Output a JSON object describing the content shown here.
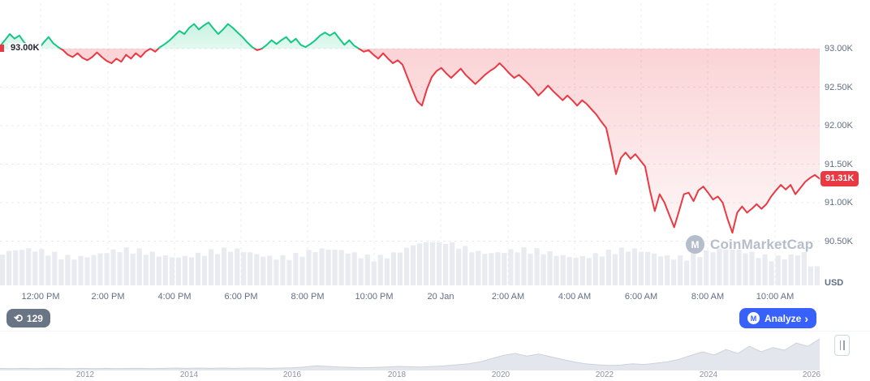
{
  "chart": {
    "left_price_label": "93.00K",
    "current_price_badge": "91.31K",
    "y_axis_unit": "USD",
    "watermark": "CoinMarketCap",
    "colors": {
      "up": "#16c784",
      "down": "#ea3943",
      "accent_blue": "#3861fb",
      "grid": "#e8ecf1",
      "axis_text": "#616e85",
      "volume_bar": "#e9ebf1",
      "badge": "#ea3943"
    }
  },
  "toolbar": {
    "history_count": "129",
    "analyze_label": "Analyze",
    "analyze_chevron": "›"
  },
  "chart_data": {
    "type": "line",
    "title": "",
    "unit": "K USD",
    "baseline_value": 93.0,
    "last_price": 91.31,
    "ylim": [
      90.4,
      93.55
    ],
    "y_ticks": [
      93.0,
      92.5,
      92.0,
      91.5,
      91.0,
      90.5
    ],
    "y_tick_labels": [
      "93.00K",
      "92.50K",
      "92.00K",
      "91.50K",
      "91.00K",
      "90.50K"
    ],
    "x_tick_labels": [
      "12:00 PM",
      "2:00 PM",
      "4:00 PM",
      "6:00 PM",
      "8:00 PM",
      "10:00 PM",
      "20 Jan",
      "2:00 AM",
      "4:00 AM",
      "6:00 AM",
      "8:00 AM",
      "10:00 AM"
    ],
    "series": [
      {
        "name": "price",
        "values": [
          93.03,
          93.11,
          93.19,
          93.13,
          93.17,
          93.08,
          93.02,
          93.05,
          93.0,
          93.08,
          93.15,
          93.07,
          93.02,
          92.98,
          92.92,
          92.89,
          92.94,
          92.88,
          92.85,
          92.89,
          92.95,
          92.89,
          92.84,
          92.81,
          92.87,
          92.83,
          92.92,
          92.87,
          92.94,
          92.89,
          92.96,
          93.0,
          92.96,
          93.02,
          93.06,
          93.11,
          93.17,
          93.23,
          93.19,
          93.27,
          93.32,
          93.25,
          93.3,
          93.34,
          93.26,
          93.19,
          93.25,
          93.32,
          93.27,
          93.21,
          93.15,
          93.08,
          93.02,
          92.98,
          93.0,
          93.05,
          93.11,
          93.06,
          93.11,
          93.15,
          93.08,
          93.13,
          93.05,
          93.02,
          93.06,
          93.11,
          93.17,
          93.21,
          93.17,
          93.21,
          93.13,
          93.05,
          93.11,
          93.04,
          93.0,
          92.96,
          92.98,
          92.92,
          92.87,
          92.94,
          92.87,
          92.81,
          92.85,
          92.79,
          92.63,
          92.47,
          92.32,
          92.26,
          92.47,
          92.63,
          92.71,
          92.75,
          92.68,
          92.62,
          92.68,
          92.74,
          92.66,
          92.6,
          92.54,
          92.6,
          92.66,
          92.71,
          92.75,
          92.81,
          92.75,
          92.68,
          92.62,
          92.66,
          92.6,
          92.54,
          92.47,
          92.39,
          92.45,
          92.52,
          92.45,
          92.39,
          92.33,
          92.39,
          92.33,
          92.26,
          92.33,
          92.28,
          92.21,
          92.14,
          92.05,
          91.97,
          91.68,
          91.37,
          91.58,
          91.65,
          91.57,
          91.63,
          91.55,
          91.47,
          91.16,
          90.89,
          91.11,
          91.0,
          90.84,
          90.68,
          90.89,
          91.11,
          91.13,
          91.02,
          91.16,
          91.21,
          91.13,
          91.04,
          91.08,
          91.0,
          90.79,
          90.61,
          90.87,
          90.95,
          90.87,
          90.92,
          90.98,
          90.92,
          90.98,
          91.08,
          91.16,
          91.23,
          91.17,
          91.23,
          91.11,
          91.19,
          91.27,
          91.32,
          91.36,
          91.31
        ]
      }
    ],
    "minimap": {
      "x_tick_labels": [
        "2012",
        "2014",
        "2016",
        "2018",
        "2020",
        "2022",
        "2024",
        "2026"
      ],
      "values": [
        0.04,
        0.03,
        0.04,
        0.03,
        0.04,
        0.04,
        0.03,
        0.04,
        0.03,
        0.04,
        0.03,
        0.04,
        0.04,
        0.03,
        0.04,
        0.05,
        0.04,
        0.05,
        0.04,
        0.05,
        0.04,
        0.05,
        0.05,
        0.04,
        0.05,
        0.06,
        0.08,
        0.12,
        0.1,
        0.08,
        0.07,
        0.06,
        0.07,
        0.08,
        0.1,
        0.09,
        0.08,
        0.1,
        0.12,
        0.15,
        0.18,
        0.24,
        0.34,
        0.44,
        0.5,
        0.42,
        0.48,
        0.4,
        0.32,
        0.24,
        0.18,
        0.15,
        0.13,
        0.14,
        0.18,
        0.16,
        0.2,
        0.24,
        0.32,
        0.44,
        0.55,
        0.45,
        0.62,
        0.5,
        0.72,
        0.55,
        0.68,
        0.6,
        0.82,
        0.72,
        0.95
      ]
    }
  }
}
